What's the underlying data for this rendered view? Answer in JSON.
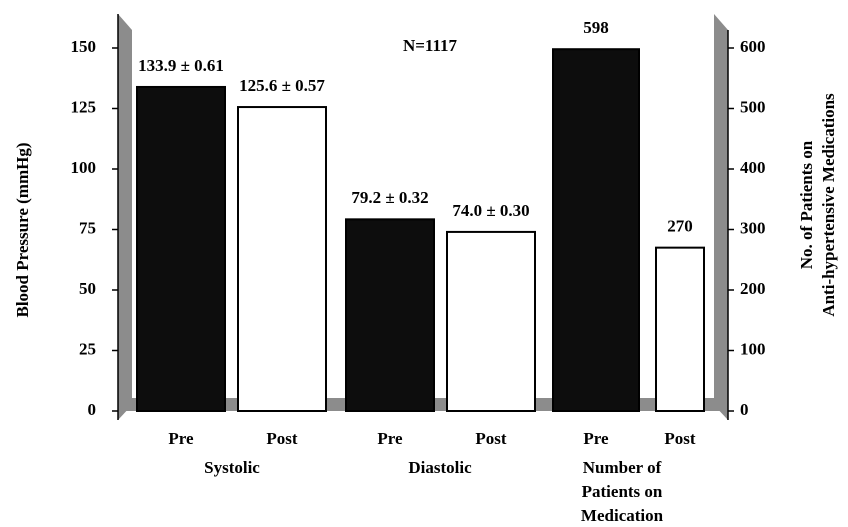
{
  "chart_data": {
    "type": "bar",
    "annotation": "N=1117",
    "ylabel": "Blood Pressure (mmHg)",
    "y2label": [
      "No. of Patients on",
      "Anti-hypertensive Medications"
    ],
    "categories": [
      "Systolic",
      "Diastolic",
      "Number of Patients on Medication"
    ],
    "series": [
      {
        "name": "Pre",
        "color": "#0d0d0d",
        "values": [
          133.9,
          79.2,
          null
        ],
        "value_labels": [
          "133.9 ± 0.61",
          "79.2 ± 0.32",
          null
        ]
      },
      {
        "name": "Post",
        "color": "#ffffff",
        "values": [
          125.6,
          74.0,
          null
        ],
        "value_labels": [
          "125.6 ± 0.57",
          "74.0 ± 0.30",
          null
        ]
      },
      {
        "name": "Pre",
        "color": "#0d0d0d",
        "axis": "y2",
        "values": [
          null,
          null,
          598
        ]
      },
      {
        "name": "Post",
        "color": "#ffffff",
        "axis": "y2",
        "values": [
          null,
          null,
          270
        ]
      }
    ],
    "ylim": [
      0,
      150
    ],
    "yticks": [
      0,
      25,
      50,
      75,
      100,
      125,
      150
    ],
    "y2lim": [
      0,
      600
    ],
    "y2ticks": [
      0,
      100,
      200,
      300,
      400,
      500,
      600
    ]
  }
}
